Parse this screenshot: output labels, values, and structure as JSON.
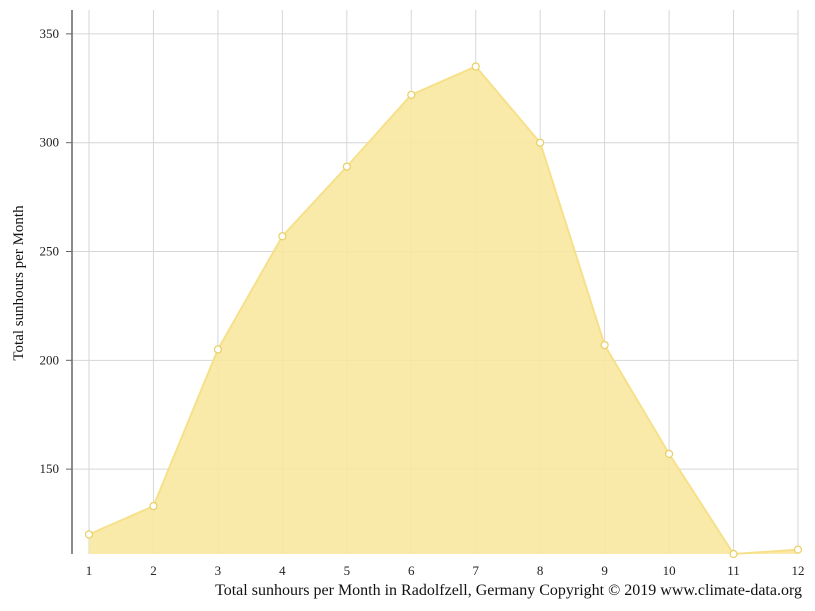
{
  "chart_data": {
    "type": "area",
    "title": "",
    "xlabel": "",
    "ylabel": "Total sunhours per Month",
    "x": [
      1,
      2,
      3,
      4,
      5,
      6,
      7,
      8,
      9,
      10,
      11,
      12
    ],
    "values": [
      120,
      133,
      205,
      257,
      289,
      322,
      335,
      300,
      207,
      157,
      111,
      113
    ],
    "xlim": [
      1,
      12
    ],
    "ylim": [
      111,
      355
    ],
    "yticks": [
      150,
      200,
      250,
      300,
      350
    ],
    "grid": true,
    "legend": "none",
    "colors": {
      "fill": "#f8e8a0",
      "line": "#f6e08a",
      "grid": "#d6d6d6",
      "axis": "#666666",
      "marker_fill": "#ffffff"
    }
  },
  "caption": "Total sunhours per Month in Radolfzell, Germany Copyright © 2019 www.climate-data.org"
}
